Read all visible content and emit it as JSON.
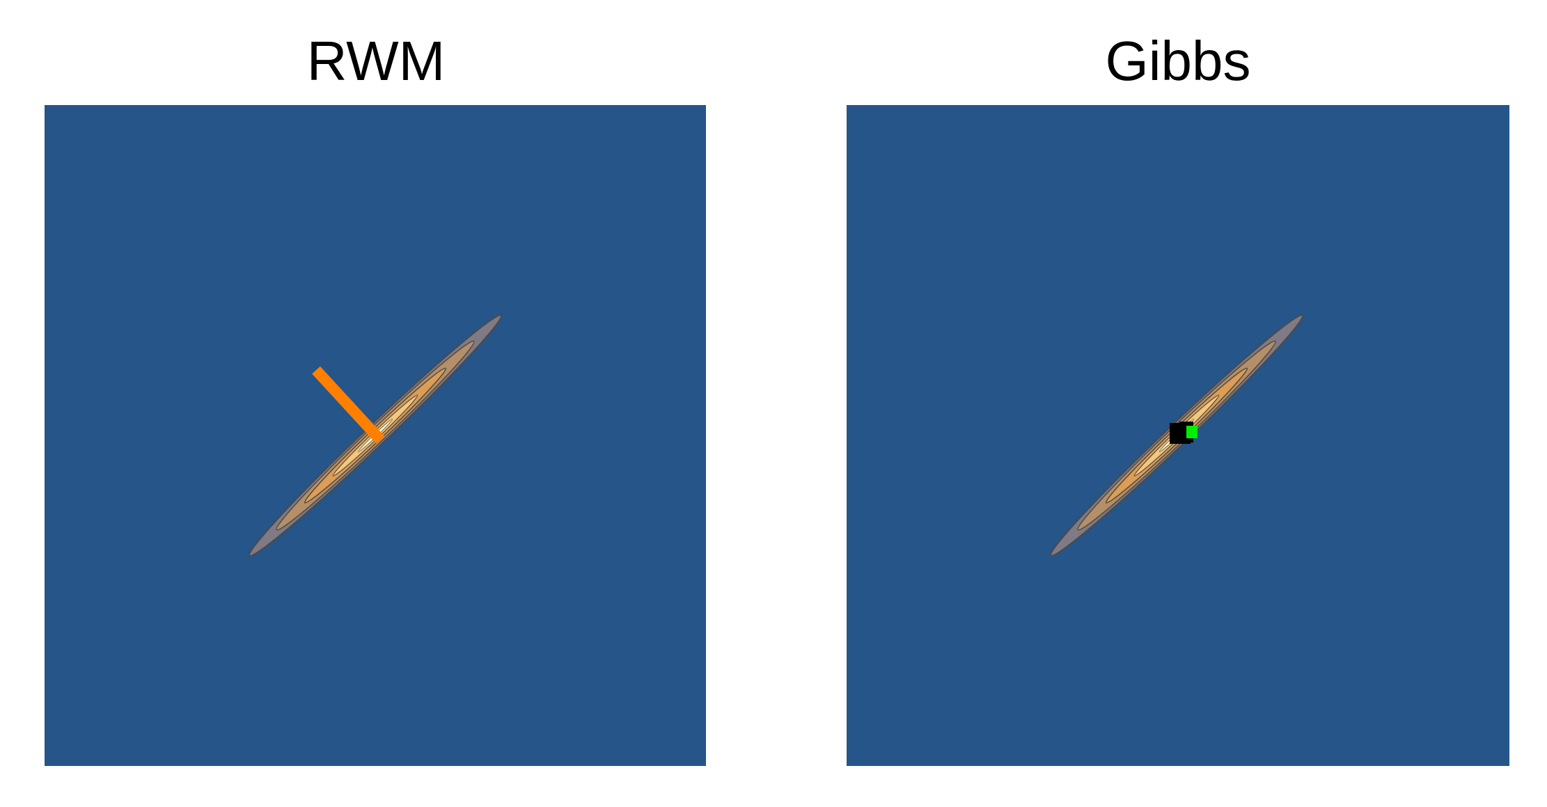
{
  "panels": [
    {
      "title": "RWM"
    },
    {
      "title": "Gibbs"
    }
  ],
  "colors": {
    "background": "#255589",
    "contour_outer": "#7f7a86",
    "contour_mid": "#b58f67",
    "contour_orange": "#dd9d55",
    "contour_inner": "#f3c77f",
    "contour_core": "#fff2c4",
    "contour_stroke": "#4d4a45",
    "rwm_path": "#ff7f00",
    "gibbs_path": "#000000",
    "gibbs_point": "#00ee00"
  }
}
